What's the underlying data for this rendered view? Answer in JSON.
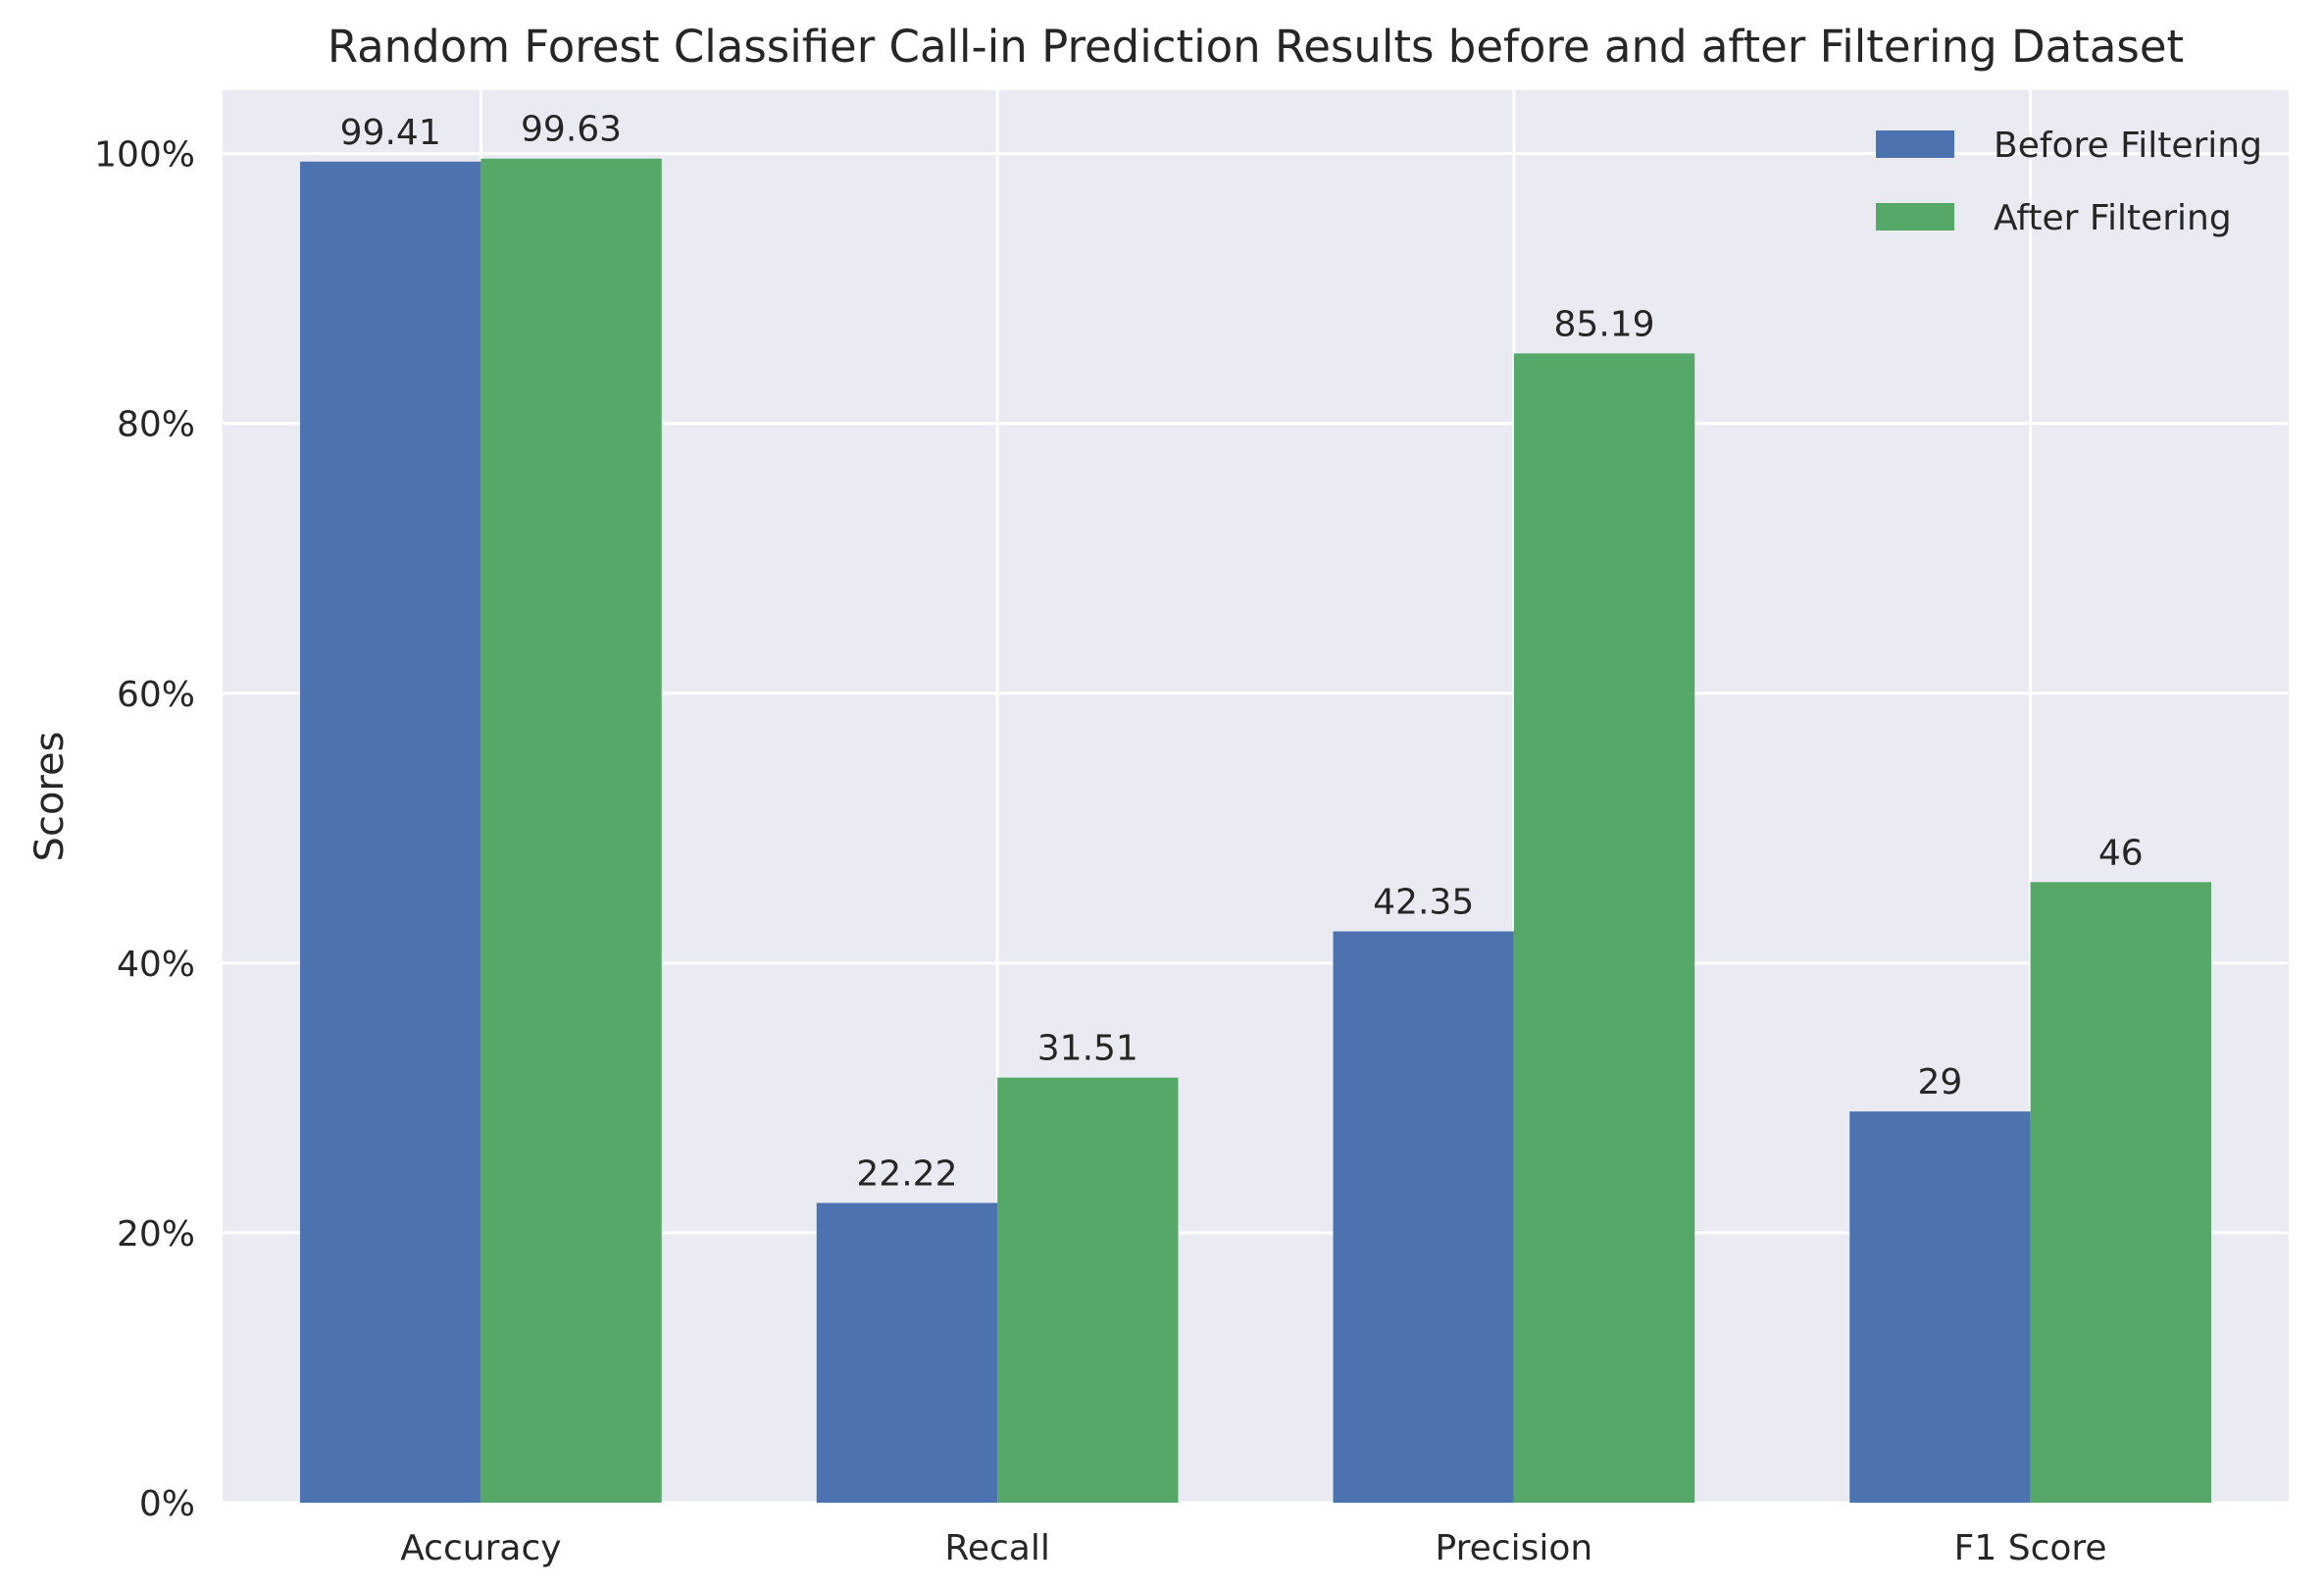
{
  "chart_data": {
    "type": "bar",
    "title": "Random Forest Classifier Call-in Prediction Results before and after Filtering Dataset",
    "xlabel": "",
    "ylabel": "Scores",
    "categories": [
      "Accuracy",
      "Recall",
      "Precision",
      "F1 Score"
    ],
    "series": [
      {
        "name": "Before Filtering",
        "values": [
          99.41,
          22.22,
          42.35,
          29
        ],
        "labels": [
          "99.41",
          "22.22",
          "42.35",
          "29"
        ],
        "color": "#4c72b0"
      },
      {
        "name": "After Filtering",
        "values": [
          99.63,
          31.51,
          85.19,
          46
        ],
        "labels": [
          "99.63",
          "31.51",
          "85.19",
          "46"
        ],
        "color": "#55a868"
      }
    ],
    "ylim": [
      0,
      104.7
    ],
    "yticks": [
      0,
      20,
      40,
      60,
      80,
      100
    ],
    "ytick_labels": [
      "0%",
      "20%",
      "40%",
      "60%",
      "80%",
      "100%"
    ],
    "grid": true,
    "legend_position": "top-right",
    "background_color": "#eaeaf2",
    "grid_color": "#ffffff"
  }
}
